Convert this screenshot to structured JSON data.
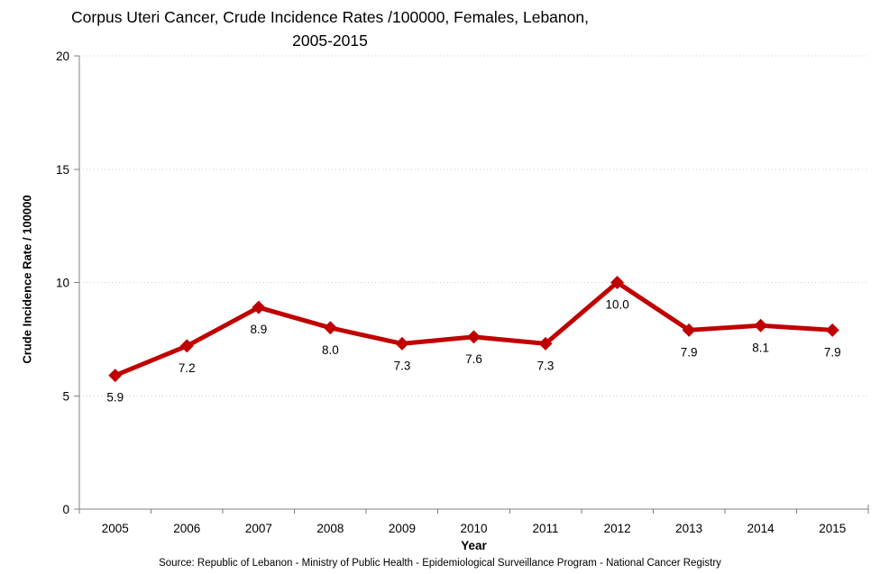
{
  "title": {
    "line1": "Corpus Uteri Cancer, Crude Incidence Rates /100000, Females, Lebanon,",
    "line2": "2005-2015"
  },
  "axes": {
    "y_title": "Crude Incidence Rate / 100000",
    "x_title": "Year",
    "y_ticks": [
      0,
      5,
      10,
      15,
      20
    ],
    "y_max": 20
  },
  "source": "Source: Republic of Lebanon - Ministry of Public Health - Epidemiological Surveillance Program - National Cancer Registry",
  "colors": {
    "line": "#C00000",
    "axis": "#808080",
    "gridline": "#C9CECE",
    "label": "#000000"
  },
  "chart_data": {
    "type": "line",
    "title": "Corpus Uteri Cancer, Crude Incidence Rates /100000, Females, Lebanon, 2005-2015",
    "categories": [
      "2005",
      "2006",
      "2007",
      "2008",
      "2009",
      "2010",
      "2011",
      "2012",
      "2013",
      "2014",
      "2015"
    ],
    "values": [
      5.9,
      7.2,
      8.9,
      8.0,
      7.3,
      7.6,
      7.3,
      10.0,
      7.9,
      8.1,
      7.9
    ],
    "point_labels": [
      "5.9",
      "7.2",
      "8.9",
      "8.0",
      "7.3",
      "7.6",
      "7.3",
      "10.0",
      "7.9",
      "8.1",
      "7.9"
    ],
    "xlabel": "Year",
    "ylabel": "Crude Incidence Rate / 100000",
    "ylim": [
      0,
      20
    ],
    "grid": "horizontal-dotted",
    "legend": "none",
    "marker": "diamond",
    "line_color": "#C00000"
  }
}
